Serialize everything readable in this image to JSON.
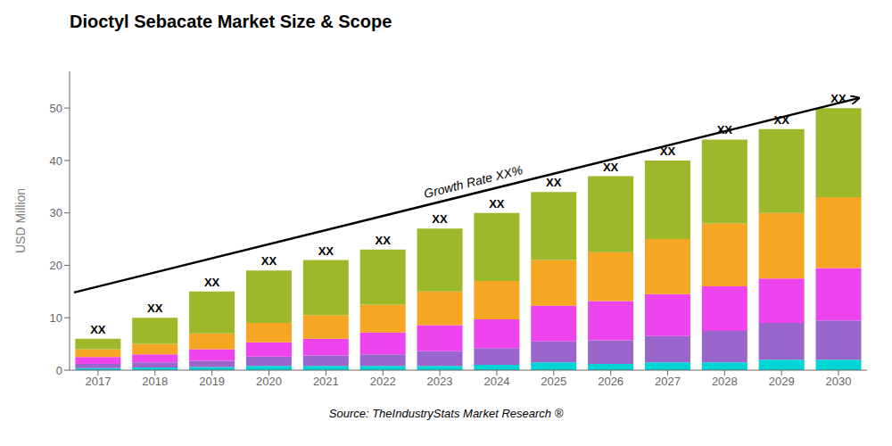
{
  "chart_data": {
    "type": "bar",
    "stacked": true,
    "title": "Dioctyl Sebacate Market Size & Scope",
    "ylabel": "USD Million",
    "source": "Source: TheIndustryStats Market Research ®",
    "categories": [
      "2017",
      "2018",
      "2019",
      "2020",
      "2021",
      "2022",
      "2023",
      "2024",
      "2025",
      "2026",
      "2027",
      "2028",
      "2029",
      "2030"
    ],
    "series": [
      {
        "color": "#00d4d4",
        "values": [
          0.4,
          0.5,
          0.6,
          0.8,
          0.8,
          0.8,
          0.8,
          1.0,
          1.5,
          1.2,
          1.5,
          1.5,
          2.0,
          2.0
        ]
      },
      {
        "color": "#9966cc",
        "values": [
          0.8,
          1.0,
          1.2,
          1.8,
          2.0,
          2.2,
          2.8,
          3.2,
          4.0,
          4.5,
          5.0,
          6.0,
          7.0,
          7.5
        ]
      },
      {
        "color": "#ee44ee",
        "values": [
          1.3,
          1.5,
          2.2,
          2.7,
          3.2,
          4.2,
          5.0,
          5.5,
          6.8,
          7.5,
          8.0,
          8.5,
          8.5,
          10.0
        ]
      },
      {
        "color": "#f5a623",
        "values": [
          1.5,
          2.0,
          3.0,
          3.7,
          4.5,
          5.3,
          6.4,
          7.3,
          8.7,
          9.3,
          10.5,
          12.0,
          12.5,
          13.5
        ]
      },
      {
        "color": "#9db82a",
        "values": [
          2.0,
          5.0,
          8.0,
          10.0,
          10.5,
          10.5,
          12.0,
          13.0,
          13.0,
          14.5,
          15.0,
          16.0,
          16.0,
          17.0
        ]
      }
    ],
    "total_labels": [
      "XX",
      "XX",
      "XX",
      "XX",
      "XX",
      "XX",
      "XX",
      "XX",
      "XX",
      "XX",
      "XX",
      "XX",
      "XX",
      "XX"
    ],
    "annotations": [
      "Growth Rate XX%"
    ],
    "ylim": [
      0,
      57
    ],
    "yticks": [
      0,
      10,
      20,
      30,
      40,
      50
    ],
    "grid": false
  }
}
